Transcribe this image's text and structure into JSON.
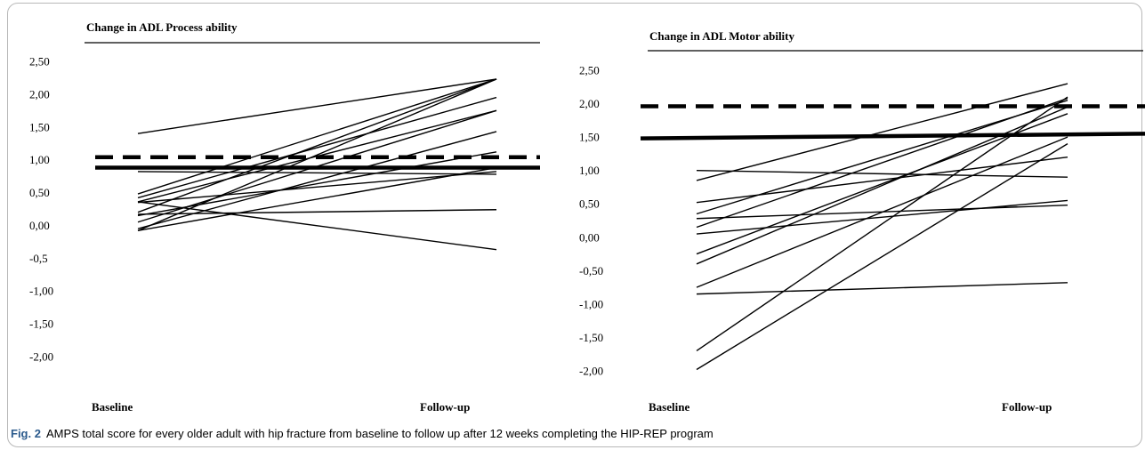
{
  "caption": {
    "label": "Fig. 2",
    "text": "AMPS total score for every older adult with hip fracture from baseline to follow up after 12 weeks completing the HIP-REP program"
  },
  "colors": {
    "lines": "#000000",
    "caption_label": "#2b5a8c",
    "frame_border": "#b8b8b8"
  },
  "chart_data": [
    {
      "type": "line",
      "title": "Change in ADL Process ability",
      "categories": [
        "Baseline",
        "Follow-up"
      ],
      "y_ticks": [
        "2,50",
        "2,00",
        "1,50",
        "1,00",
        "0,50",
        "0,00",
        "-0,5",
        "-1,00",
        "-1,50",
        "-2,00"
      ],
      "ylim": [
        -2.0,
        2.5
      ],
      "grid": false,
      "series": [
        {
          "values": [
            1.4,
            2.23
          ]
        },
        {
          "values": [
            0.48,
            2.23
          ]
        },
        {
          "values": [
            0.42,
            1.95
          ]
        },
        {
          "values": [
            0.36,
            1.75
          ]
        },
        {
          "values": [
            0.2,
            2.23
          ]
        },
        {
          "values": [
            0.05,
            1.75
          ]
        },
        {
          "values": [
            -0.08,
            2.23
          ]
        },
        {
          "values": [
            -0.05,
            1.43
          ]
        },
        {
          "values": [
            0.15,
            1.12
          ]
        },
        {
          "values": [
            -0.08,
            0.88
          ]
        },
        {
          "values": [
            0.35,
            0.82
          ]
        },
        {
          "values": [
            0.82,
            0.78
          ]
        },
        {
          "values": [
            0.17,
            0.24
          ]
        },
        {
          "values": [
            0.36,
            -0.37
          ]
        }
      ],
      "reference_lines": [
        {
          "style": "solid",
          "values": [
            0.88,
            0.88
          ]
        },
        {
          "style": "dashed",
          "values": [
            1.04,
            1.04
          ]
        }
      ]
    },
    {
      "type": "line",
      "title": "Change in ADL Motor ability",
      "categories": [
        "Baseline",
        "Follow-up"
      ],
      "y_ticks": [
        "2,50",
        "2,00",
        "1,50",
        "1,00",
        "0,50",
        "0,00",
        "-0,50",
        "-1,00",
        "-1,50",
        "-2,00"
      ],
      "ylim": [
        -2.0,
        2.5
      ],
      "grid": false,
      "series": [
        {
          "values": [
            1.0,
            0.9
          ]
        },
        {
          "values": [
            0.85,
            2.3
          ]
        },
        {
          "values": [
            0.52,
            1.2
          ]
        },
        {
          "values": [
            0.35,
            2.05
          ]
        },
        {
          "values": [
            0.28,
            0.48
          ]
        },
        {
          "values": [
            0.15,
            2.08
          ]
        },
        {
          "values": [
            0.05,
            0.55
          ]
        },
        {
          "values": [
            -0.25,
            1.85
          ]
        },
        {
          "values": [
            -0.4,
            1.95
          ]
        },
        {
          "values": [
            -0.75,
            1.5
          ]
        },
        {
          "values": [
            -0.85,
            -0.68
          ]
        },
        {
          "values": [
            -1.7,
            2.1
          ]
        },
        {
          "values": [
            -1.98,
            1.4
          ]
        }
      ],
      "reference_lines": [
        {
          "style": "solid",
          "values": [
            1.48,
            1.55
          ]
        },
        {
          "style": "dashed",
          "values": [
            1.96,
            1.96
          ]
        }
      ]
    }
  ]
}
